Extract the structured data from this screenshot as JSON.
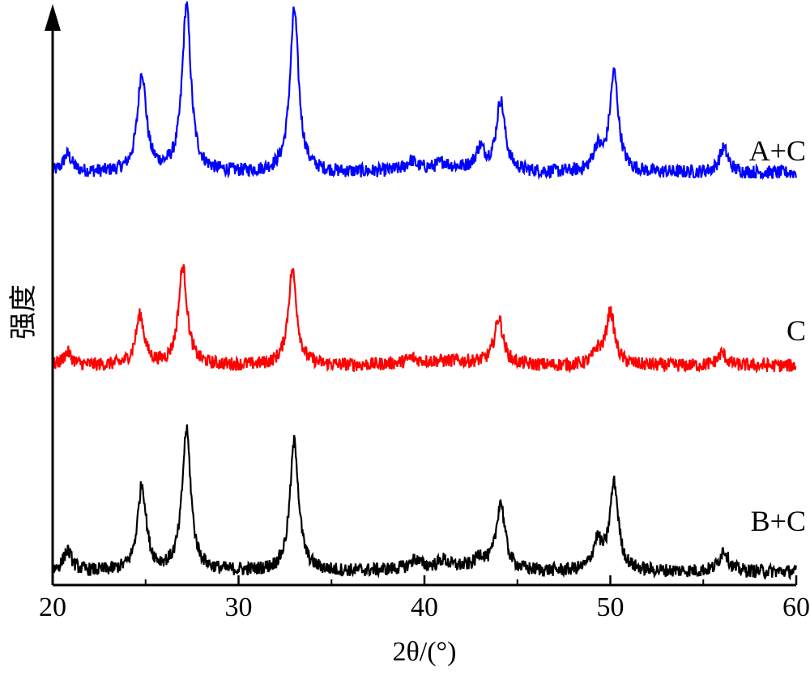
{
  "chart_data": {
    "type": "line",
    "title": "",
    "xlabel": "2θ/(°)",
    "ylabel": "强度",
    "xlim": [
      20,
      60
    ],
    "ylim": [
      0,
      100
    ],
    "x_ticks": [
      "20",
      "30",
      "40",
      "50",
      "60"
    ],
    "y_ticks": [],
    "grid": false,
    "legend": "inline labels at right end of each curve",
    "peak_positions_2theta": [
      20.8,
      24.8,
      27.2,
      33.0,
      39.3,
      41.0,
      43.0,
      44.1,
      49.3,
      50.2,
      56.1
    ],
    "series": [
      {
        "name": "A+C",
        "color": "#0000ff",
        "baseline": 73.3,
        "peaks": [
          {
            "x": 20.8,
            "height": 3.2
          },
          {
            "x": 24.8,
            "height": 17.6
          },
          {
            "x": 27.2,
            "height": 29.7
          },
          {
            "x": 33.0,
            "height": 28.9
          },
          {
            "x": 39.3,
            "height": 1.5
          },
          {
            "x": 41.0,
            "height": 1.0
          },
          {
            "x": 43.0,
            "height": 3.6
          },
          {
            "x": 44.1,
            "height": 12.5
          },
          {
            "x": 49.3,
            "height": 3.9
          },
          {
            "x": 50.2,
            "height": 17.6
          },
          {
            "x": 56.1,
            "height": 4.4
          }
        ]
      },
      {
        "name": "C",
        "color": "#ff0000",
        "baseline": 39.0,
        "peaks": [
          {
            "x": 20.8,
            "height": 2.3
          },
          {
            "x": 24.7,
            "height": 8.8
          },
          {
            "x": 27.0,
            "height": 17.5
          },
          {
            "x": 32.9,
            "height": 16.9
          },
          {
            "x": 39.3,
            "height": 0.8
          },
          {
            "x": 44.0,
            "height": 8.2
          },
          {
            "x": 49.3,
            "height": 2.2
          },
          {
            "x": 50.0,
            "height": 9.4
          },
          {
            "x": 56.0,
            "height": 2.2
          }
        ]
      },
      {
        "name": "B+C",
        "color": "#000000",
        "baseline": 2.4,
        "peaks": [
          {
            "x": 20.8,
            "height": 3.6
          },
          {
            "x": 24.8,
            "height": 15.2
          },
          {
            "x": 27.2,
            "height": 25.0
          },
          {
            "x": 33.0,
            "height": 23.1
          },
          {
            "x": 39.5,
            "height": 1.5
          },
          {
            "x": 41.0,
            "height": 1.2
          },
          {
            "x": 43.0,
            "height": 2.0
          },
          {
            "x": 44.1,
            "height": 12.0
          },
          {
            "x": 49.3,
            "height": 5.0
          },
          {
            "x": 50.2,
            "height": 15.5
          },
          {
            "x": 56.1,
            "height": 3.8
          }
        ]
      }
    ]
  }
}
